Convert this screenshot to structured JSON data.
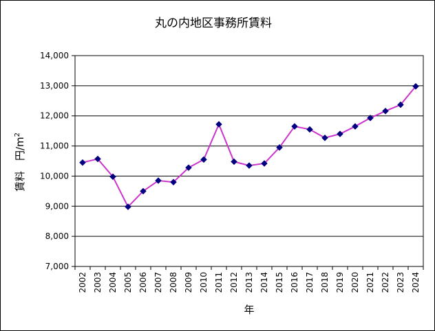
{
  "chart_data": {
    "type": "line",
    "title": "丸の内地区事務所賃料",
    "xlabel": "年",
    "ylabel": "賃料　円/m",
    "ylabel_superscript": "2",
    "ylim": [
      7000,
      14000
    ],
    "yticks": [
      7000,
      8000,
      9000,
      10000,
      11000,
      12000,
      13000,
      14000
    ],
    "ytick_labels": [
      "7,000",
      "8,000",
      "9,000",
      "10,000",
      "11,000",
      "12,000",
      "13,000",
      "14,000"
    ],
    "grid": "horizontal",
    "legend": "none",
    "categories": [
      "2002",
      "2003",
      "2004",
      "2005",
      "2006",
      "2007",
      "2008",
      "2009",
      "2010",
      "2011",
      "2012",
      "2013",
      "2014",
      "2015",
      "2016",
      "2017",
      "2018",
      "2019",
      "2020",
      "2021",
      "2022",
      "2023",
      "2024"
    ],
    "series": [
      {
        "values": [
          10450,
          10570,
          9980,
          8980,
          9500,
          9850,
          9800,
          10280,
          10550,
          11720,
          10480,
          10350,
          10420,
          10950,
          11650,
          11550,
          11270,
          11400,
          11650,
          11930,
          12160,
          12370,
          12980
        ],
        "line_color": "#cc33cc",
        "marker_color": "#000080",
        "marker": "diamond"
      }
    ]
  }
}
